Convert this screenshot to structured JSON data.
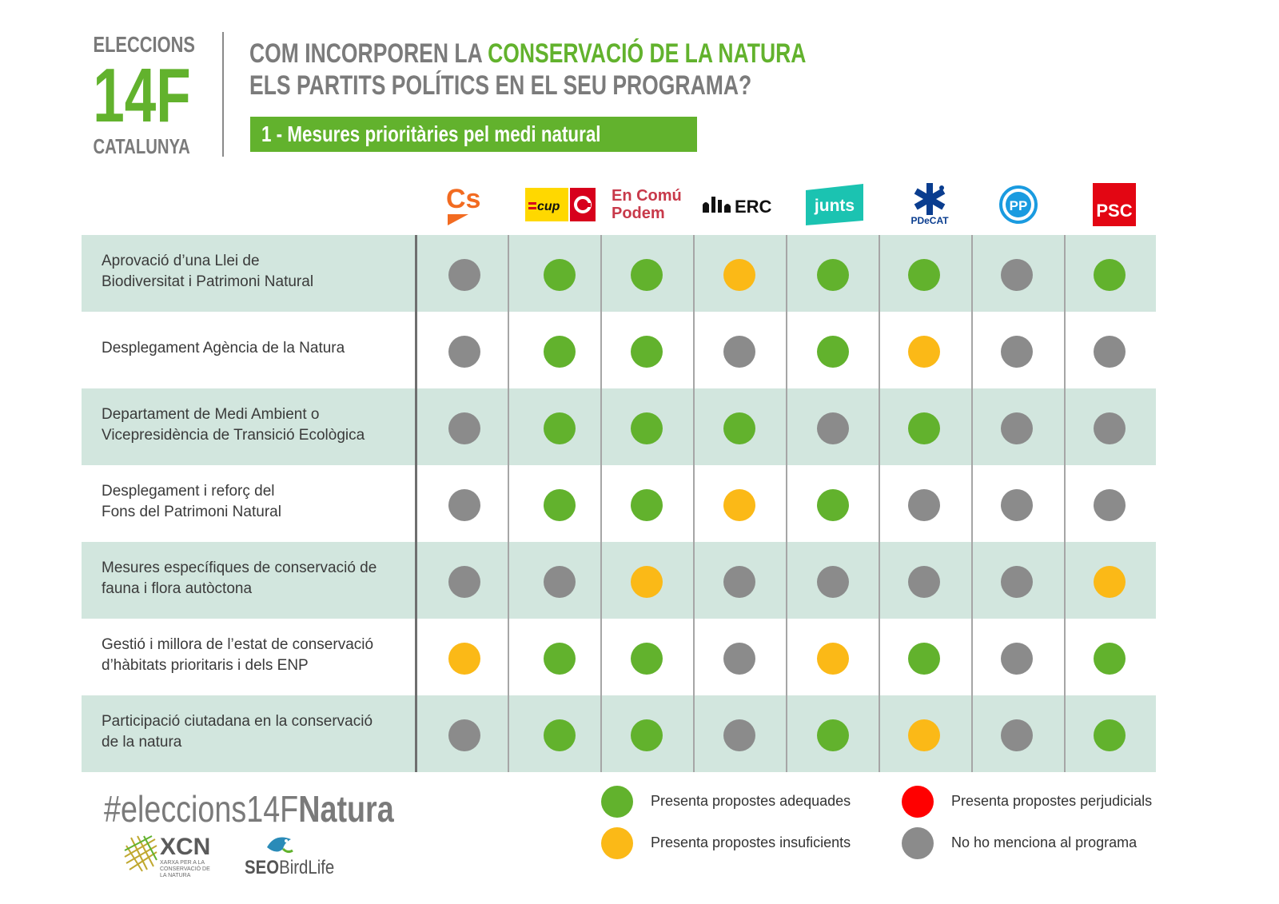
{
  "header": {
    "brand_top": "ELECCIONS",
    "brand_big": "14F",
    "brand_bottom": "CATALUNYA",
    "title_line1_prefix": "COM INCORPOREN LA ",
    "title_line1_highlight": "CONSERVACIÓ DE LA NATURA",
    "title_line2": "ELS PARTITS POLÍTICS EN EL SEU PROGRAMA?",
    "subtitle": "1 - Mesures prioritàries pel medi natural"
  },
  "parties": [
    {
      "id": "cs",
      "label": "Cs"
    },
    {
      "id": "cup",
      "label": "cup"
    },
    {
      "id": "encomu",
      "label_line1": "En Comú",
      "label_line2": "Podem"
    },
    {
      "id": "erc",
      "label": "ERC"
    },
    {
      "id": "junts",
      "label": "junts"
    },
    {
      "id": "pdecat",
      "label": "PDeCAT"
    },
    {
      "id": "pp",
      "label": "PP"
    },
    {
      "id": "psc",
      "label": "PSC"
    }
  ],
  "rows": [
    {
      "label_line1": "Aprovació d’una Llei de",
      "label_line2": "Biodiversitat i Patrimoni Natural",
      "values": [
        "none",
        "adequate",
        "adequate",
        "insufficient",
        "adequate",
        "adequate",
        "none",
        "adequate"
      ]
    },
    {
      "label_line1": "Desplegament Agència de la Natura",
      "label_line2": "",
      "values": [
        "none",
        "adequate",
        "adequate",
        "none",
        "adequate",
        "insufficient",
        "none",
        "none"
      ]
    },
    {
      "label_line1": "Departament de Medi Ambient o",
      "label_line2": "Vicepresidència de Transició Ecològica",
      "values": [
        "none",
        "adequate",
        "adequate",
        "adequate",
        "none",
        "adequate",
        "none",
        "none"
      ]
    },
    {
      "label_line1": "Desplegament i reforç del",
      "label_line2": "Fons del Patrimoni Natural",
      "values": [
        "none",
        "adequate",
        "adequate",
        "insufficient",
        "adequate",
        "none",
        "none",
        "none"
      ]
    },
    {
      "label_line1": "Mesures específiques de conservació de",
      "label_line2": "fauna i flora autòctona",
      "values": [
        "none",
        "none",
        "insufficient",
        "none",
        "none",
        "none",
        "none",
        "insufficient"
      ]
    },
    {
      "label_line1": "Gestió i millora de l’estat de conservació",
      "label_line2": "d’hàbitats prioritaris i dels ENP",
      "values": [
        "insufficient",
        "adequate",
        "adequate",
        "none",
        "insufficient",
        "adequate",
        "none",
        "adequate"
      ]
    },
    {
      "label_line1": "Participació ciutadana en la conservació",
      "label_line2": "de la natura",
      "values": [
        "none",
        "adequate",
        "adequate",
        "none",
        "adequate",
        "insufficient",
        "none",
        "adequate"
      ]
    }
  ],
  "legend": [
    {
      "key": "adequate",
      "label": "Presenta propostes adequades",
      "color": "#62b22d"
    },
    {
      "key": "insufficient",
      "label": "Presenta propostes insuficients",
      "color": "#fbb917"
    },
    {
      "key": "harmful",
      "label": "Presenta propostes perjudicials",
      "color": "#ff0000"
    },
    {
      "key": "none",
      "label": "No ho menciona al programa",
      "color": "#8b8b8b"
    }
  ],
  "footer": {
    "hashtag_prefix": "#eleccions14F",
    "hashtag_bold": "Natura",
    "xcn_label": "XCN",
    "xcn_sub_line1": "XARXA PER A LA",
    "xcn_sub_line2": "CONSERVACIÓ DE",
    "xcn_sub_line3": "LA NATURA",
    "seo_label_bold": "SEO",
    "seo_label": "BirdLife"
  }
}
